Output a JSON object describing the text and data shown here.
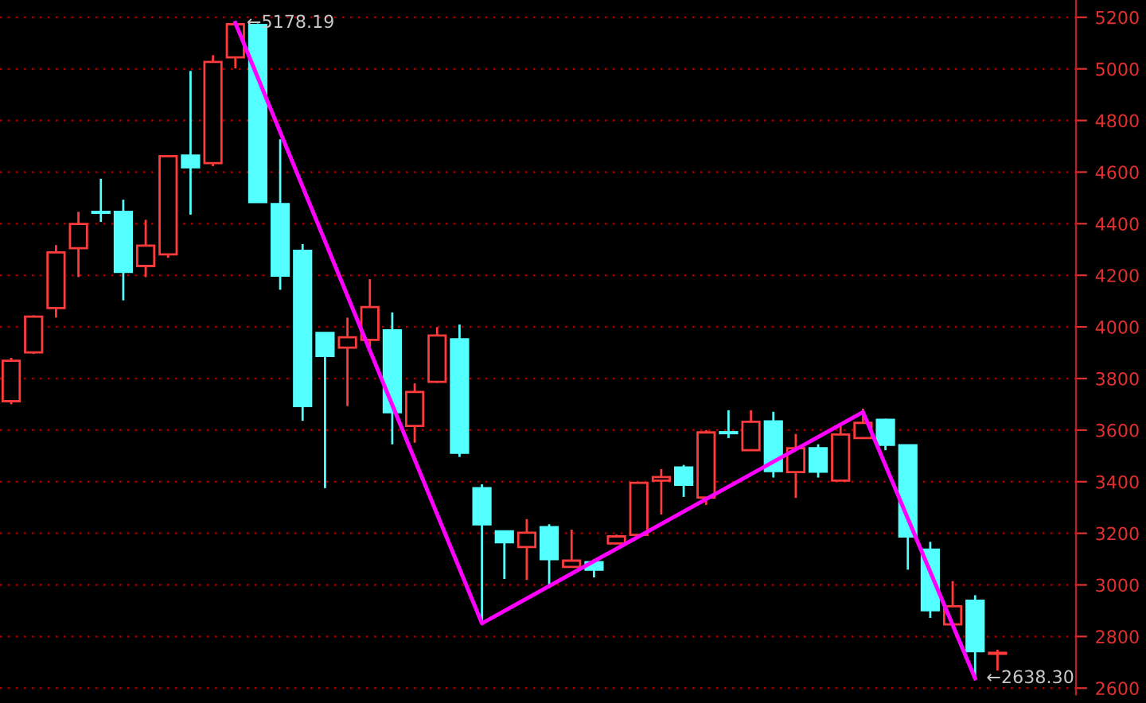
{
  "chart_data": {
    "type": "candlestick",
    "categories": [
      null,
      null,
      null,
      null,
      null,
      null,
      null,
      null,
      null,
      null,
      null,
      null,
      null,
      null,
      null,
      null,
      null,
      null,
      null,
      null,
      null,
      null,
      null,
      null,
      null,
      null,
      null,
      null,
      null,
      null,
      null,
      null,
      null,
      null,
      null,
      null,
      null,
      null,
      null,
      null,
      null,
      null,
      null,
      null,
      null,
      null,
      null,
      null
    ],
    "ohlc": [
      [
        3712,
        3880,
        3700,
        3869
      ],
      [
        3901,
        4045,
        3895,
        4040
      ],
      [
        4073,
        4317,
        4036,
        4289
      ],
      [
        4305,
        4446,
        4193,
        4399
      ],
      [
        4446,
        4574,
        4407,
        4442
      ],
      [
        4446,
        4493,
        4103,
        4213
      ],
      [
        4236,
        4415,
        4193,
        4315
      ],
      [
        4281,
        4662,
        4268,
        4662
      ],
      [
        4664,
        4992,
        4435,
        4619
      ],
      [
        4635,
        5053,
        4623,
        5027
      ],
      [
        5045,
        5178.19,
        5002,
        5173
      ],
      [
        5170,
        5176,
        4484,
        4484
      ],
      [
        4476,
        4727,
        4144,
        4199
      ],
      [
        4295,
        4321,
        3636,
        3693
      ],
      [
        3977,
        3977,
        3375,
        3887
      ],
      [
        3920,
        4036,
        3693,
        3960
      ],
      [
        3950,
        4185,
        3918,
        4077
      ],
      [
        3987,
        4056,
        3545,
        3669
      ],
      [
        3616,
        3781,
        3551,
        3748
      ],
      [
        3787,
        3999,
        3783,
        3967
      ],
      [
        3952,
        4009,
        3496,
        3512
      ],
      [
        3375,
        3390,
        2851,
        3235
      ],
      [
        3208,
        3208,
        3023,
        3165
      ],
      [
        3147,
        3255,
        3019,
        3202
      ],
      [
        3224,
        3235,
        2988,
        3100
      ],
      [
        3070,
        3214,
        3068,
        3094
      ],
      [
        3088,
        3100,
        3029,
        3059
      ],
      [
        3161,
        3195,
        3158,
        3188
      ],
      [
        3194,
        3396,
        3194,
        3396
      ],
      [
        3404,
        3449,
        3273,
        3418
      ],
      [
        3455,
        3465,
        3341,
        3388
      ],
      [
        3339,
        3600,
        3310,
        3591
      ],
      [
        3592,
        3677,
        3569,
        3588
      ],
      [
        3522,
        3677,
        3520,
        3632
      ],
      [
        3634,
        3671,
        3416,
        3441
      ],
      [
        3437,
        3585,
        3337,
        3530
      ],
      [
        3530,
        3545,
        3416,
        3439
      ],
      [
        3404,
        3616,
        3404,
        3583
      ],
      [
        3569,
        3683,
        3569,
        3628
      ],
      [
        3640,
        3644,
        3522,
        3543
      ],
      [
        3541,
        3541,
        3059,
        3188
      ],
      [
        3137,
        3167,
        2872,
        2902
      ],
      [
        2847,
        3015,
        2845,
        2917
      ],
      [
        2939,
        2960,
        2638.3,
        2743
      ],
      [
        2733,
        2749,
        2668,
        2737
      ],
      null,
      null,
      null
    ],
    "series": [
      {
        "type": "line",
        "color": "#ff00ff",
        "values": [
          null,
          null,
          null,
          null,
          null,
          null,
          null,
          null,
          null,
          null,
          5178,
          null,
          null,
          null,
          null,
          null,
          null,
          null,
          null,
          null,
          null,
          2851,
          null,
          null,
          null,
          null,
          null,
          null,
          null,
          null,
          null,
          null,
          null,
          null,
          null,
          null,
          null,
          null,
          3670,
          null,
          null,
          null,
          null,
          2638,
          null,
          null,
          null,
          null
        ]
      }
    ],
    "annotations": [
      "←5178.19",
      "←2638.30"
    ],
    "ylim": [
      2575,
      5267
    ],
    "yticks": [
      2600,
      2800,
      3000,
      3200,
      3400,
      3600,
      3800,
      4000,
      4200,
      4400,
      4600,
      4800,
      5000,
      5200
    ],
    "grid": "y"
  }
}
